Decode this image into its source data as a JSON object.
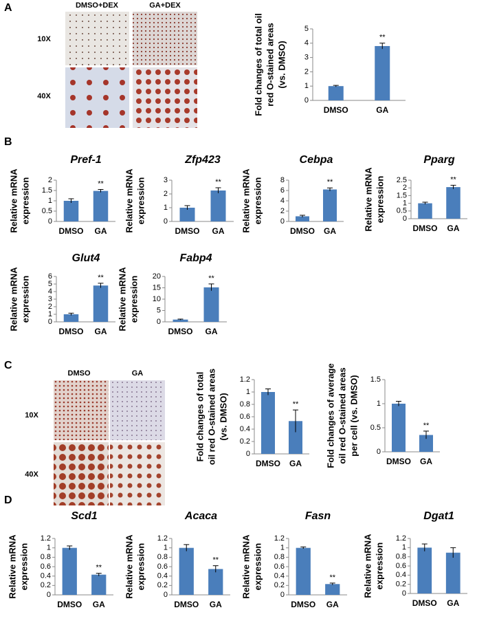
{
  "panel_labels": [
    "A",
    "B",
    "C",
    "D"
  ],
  "images": {
    "A": {
      "columns": [
        "DMSO+DEX",
        "GA+DEX"
      ],
      "rows": [
        "10X",
        "40X"
      ]
    },
    "C": {
      "columns": [
        "DMSO",
        "GA"
      ],
      "rows": [
        "10X",
        "40X"
      ]
    }
  },
  "chart_data": [
    {
      "type": "bar",
      "ylabel": [
        "Fold changes of total oil",
        "red O-stained areas",
        "(vs. DMSO)"
      ],
      "categories": [
        "DMSO",
        "GA"
      ],
      "values": [
        1,
        3.8
      ],
      "errors": [
        0.05,
        0.2
      ],
      "significance": [
        null,
        "**"
      ],
      "ylim": [
        0,
        5
      ],
      "yticks": [
        0,
        1,
        2,
        3,
        4,
        5
      ],
      "color": "#4a7ebb"
    },
    {
      "type": "bar",
      "title": "Pref-1",
      "ylabel": [
        "Relative mRNA",
        "expression"
      ],
      "categories": [
        "DMSO",
        "GA"
      ],
      "values": [
        1,
        1.48
      ],
      "errors": [
        0.1,
        0.07
      ],
      "significance": [
        null,
        "**"
      ],
      "ylim": [
        0,
        2
      ],
      "yticks": [
        0,
        0.5,
        1,
        1.5,
        2
      ],
      "color": "#4a7ebb"
    },
    {
      "type": "bar",
      "title": "Zfp423",
      "ylabel": [
        "Relative mRNA",
        "expression"
      ],
      "categories": [
        "DMSO",
        "GA"
      ],
      "values": [
        1,
        2.25
      ],
      "errors": [
        0.15,
        0.2
      ],
      "significance": [
        null,
        "**"
      ],
      "ylim": [
        0,
        3
      ],
      "yticks": [
        0,
        1,
        2,
        3
      ],
      "color": "#4a7ebb"
    },
    {
      "type": "bar",
      "title": "Cebpa",
      "ylabel": [
        "Relative mRNA",
        "expression"
      ],
      "categories": [
        "DMSO",
        "GA"
      ],
      "values": [
        1,
        6.2
      ],
      "errors": [
        0.2,
        0.3
      ],
      "significance": [
        null,
        "**"
      ],
      "ylim": [
        0,
        8
      ],
      "yticks": [
        0,
        2,
        4,
        6,
        8
      ],
      "color": "#4a7ebb"
    },
    {
      "type": "bar",
      "title": "Pparg",
      "ylabel": [
        "Relative mRNA",
        "expression"
      ],
      "categories": [
        "DMSO",
        "GA"
      ],
      "values": [
        1,
        2.05
      ],
      "errors": [
        0.07,
        0.12
      ],
      "significance": [
        null,
        "**"
      ],
      "ylim": [
        0,
        2.5
      ],
      "yticks": [
        0,
        0.5,
        1,
        1.5,
        2,
        2.5
      ],
      "color": "#4a7ebb"
    },
    {
      "type": "bar",
      "title": "Glut4",
      "ylabel": [
        "Relative mRNA",
        "expression"
      ],
      "categories": [
        "DMSO",
        "GA"
      ],
      "values": [
        1,
        4.8
      ],
      "errors": [
        0.15,
        0.3
      ],
      "significance": [
        null,
        "**"
      ],
      "ylim": [
        0,
        6
      ],
      "yticks": [
        0,
        1,
        2,
        3,
        4,
        5,
        6
      ],
      "color": "#4a7ebb"
    },
    {
      "type": "bar",
      "title": "Fabp4",
      "ylabel": [
        "Relative mRNA",
        "expression"
      ],
      "categories": [
        "DMSO",
        "GA"
      ],
      "values": [
        1,
        15.2
      ],
      "errors": [
        0.2,
        1.5
      ],
      "significance": [
        null,
        "**"
      ],
      "ylim": [
        0,
        20
      ],
      "yticks": [
        0,
        5,
        10,
        15,
        20
      ],
      "color": "#4a7ebb"
    },
    {
      "type": "bar",
      "ylabel": [
        "Fold changes of total",
        "oil red O-stained areas",
        "(vs. DMSO)"
      ],
      "categories": [
        "DMSO",
        "GA"
      ],
      "values": [
        1,
        0.53
      ],
      "errors": [
        0.05,
        0.18
      ],
      "significance": [
        null,
        "**"
      ],
      "ylim": [
        0,
        1.2
      ],
      "yticks": [
        0,
        0.2,
        0.4,
        0.6,
        0.8,
        1,
        1.2
      ],
      "color": "#4a7ebb"
    },
    {
      "type": "bar",
      "ylabel": [
        "Fold changes of average",
        "oil red O-stained areas",
        "per cell (vs. DMSO)"
      ],
      "categories": [
        "DMSO",
        "GA"
      ],
      "values": [
        1,
        0.35
      ],
      "errors": [
        0.05,
        0.08
      ],
      "significance": [
        null,
        "**"
      ],
      "ylim": [
        0,
        1.5
      ],
      "yticks": [
        0,
        0.5,
        1,
        1.5
      ],
      "color": "#4a7ebb"
    },
    {
      "type": "bar",
      "title": "Scd1",
      "ylabel": [
        "Relative mRNA",
        "expression"
      ],
      "categories": [
        "DMSO",
        "GA"
      ],
      "values": [
        1,
        0.43
      ],
      "errors": [
        0.04,
        0.03
      ],
      "significance": [
        null,
        "**"
      ],
      "ylim": [
        0,
        1.2
      ],
      "yticks": [
        0,
        0.2,
        0.4,
        0.6,
        0.8,
        1,
        1.2
      ],
      "color": "#4a7ebb"
    },
    {
      "type": "bar",
      "title": "Acaca",
      "ylabel": [
        "Relative mRNA",
        "expression"
      ],
      "categories": [
        "DMSO",
        "GA"
      ],
      "values": [
        1,
        0.55
      ],
      "errors": [
        0.07,
        0.07
      ],
      "significance": [
        null,
        "**"
      ],
      "ylim": [
        0,
        1.2
      ],
      "yticks": [
        0,
        0.2,
        0.4,
        0.6,
        0.8,
        1,
        1.2
      ],
      "color": "#4a7ebb"
    },
    {
      "type": "bar",
      "title": "Fasn",
      "ylabel": [
        "Relative mRNA",
        "expression"
      ],
      "categories": [
        "DMSO",
        "GA"
      ],
      "values": [
        1,
        0.23
      ],
      "errors": [
        0.02,
        0.02
      ],
      "significance": [
        null,
        "**"
      ],
      "ylim": [
        0,
        1.2
      ],
      "yticks": [
        0,
        0.2,
        0.4,
        0.6,
        0.8,
        1,
        1.2
      ],
      "color": "#4a7ebb"
    },
    {
      "type": "bar",
      "title": "Dgat1",
      "ylabel": [
        "Relative mRNA",
        "expression"
      ],
      "categories": [
        "DMSO",
        "GA"
      ],
      "values": [
        1,
        0.89
      ],
      "errors": [
        0.08,
        0.11
      ],
      "significance": [
        null,
        null
      ],
      "ylim": [
        0,
        1.2
      ],
      "yticks": [
        0,
        0.2,
        0.4,
        0.6,
        0.8,
        1,
        1.2
      ],
      "color": "#4a7ebb"
    }
  ]
}
